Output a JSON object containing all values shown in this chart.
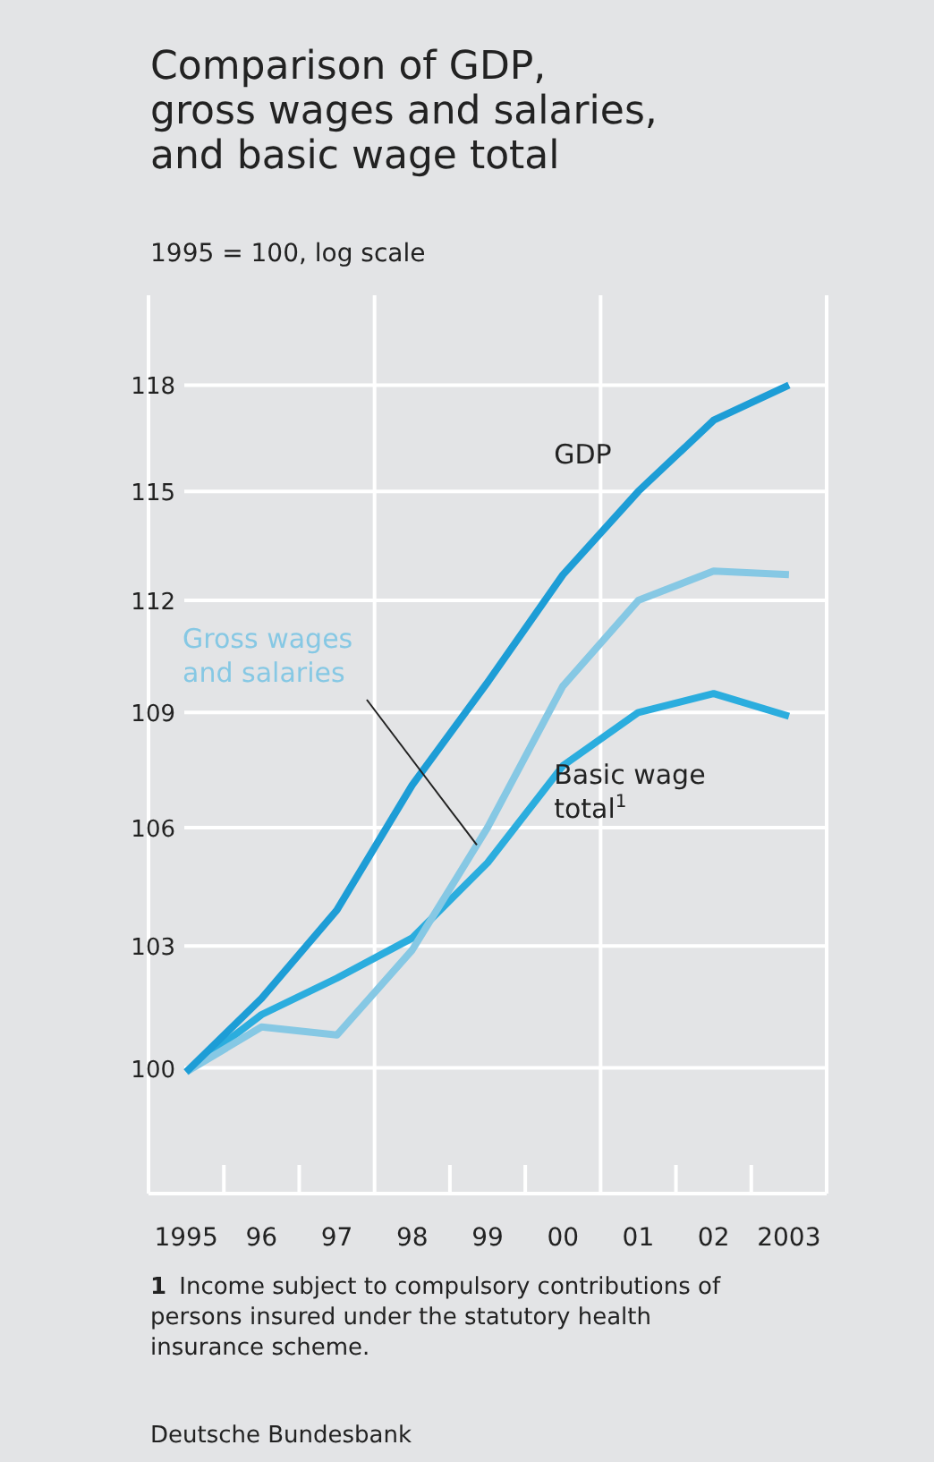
{
  "chart_data": {
    "type": "line",
    "title": "Comparison of GDP,\ngross wages and salaries,\nand basic wage total",
    "ylabel": "1995 = 100, log scale",
    "categories": [
      "1995",
      "96",
      "97",
      "98",
      "99",
      "00",
      "01",
      "02",
      "2003"
    ],
    "series": [
      {
        "name": "GDP",
        "color": "#1d9dd6",
        "values": [
          99.9,
          101.7,
          103.9,
          107.1,
          109.8,
          112.7,
          115.0,
          117.0,
          118.0
        ]
      },
      {
        "name": "Gross wages and salaries",
        "color": "#86c8e4",
        "values": [
          99.9,
          101.0,
          100.8,
          102.9,
          106.0,
          109.7,
          112.0,
          112.8,
          112.7
        ]
      },
      {
        "name": "Basic wage total$^{1}$",
        "color": "#2badde",
        "values": [
          99.9,
          101.3,
          102.2,
          103.2,
          105.1,
          107.6,
          109.0,
          109.5,
          108.9
        ]
      }
    ],
    "ylim": [
      97,
      120.6
    ],
    "yticks": [
      100,
      103,
      106,
      109,
      112,
      115,
      118
    ],
    "log": true,
    "grid": true,
    "legend": false,
    "line_style": "solid",
    "marker": "none",
    "annotations": [
      "1 Income subject to compulsory contributions of persons insured under the statutory health insurance scheme.",
      "Deutsche Bundesbank"
    ]
  }
}
